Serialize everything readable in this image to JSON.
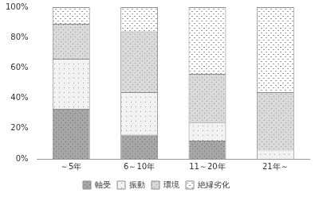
{
  "chart_data": {
    "type": "bar",
    "categories": [
      "～5年",
      "6～10年",
      "11～20年",
      "21年～"
    ],
    "series": [
      {
        "name": "軸受",
        "color": "#a6a6a6",
        "values": [
          33,
          16,
          12,
          0
        ]
      },
      {
        "name": "振動",
        "color": "#f2f2f2",
        "values": [
          33,
          28,
          12,
          6
        ]
      },
      {
        "name": "環境",
        "color": "#d9d9d9",
        "values": [
          23,
          40,
          32,
          38
        ]
      },
      {
        "name": "絶縁劣化",
        "color": "#ffffff",
        "values": [
          11,
          16,
          44,
          56
        ]
      }
    ],
    "stacked": true,
    "ylim": [
      0,
      100
    ],
    "yticks": [
      {
        "value": 0,
        "label": "0%"
      },
      {
        "value": 20,
        "label": "20%"
      },
      {
        "value": 40,
        "label": "40%"
      },
      {
        "value": 60,
        "label": "60%"
      },
      {
        "value": 80,
        "label": "80%"
      },
      {
        "value": 100,
        "label": "100%"
      }
    ],
    "grid": false,
    "legend": "bottom"
  }
}
